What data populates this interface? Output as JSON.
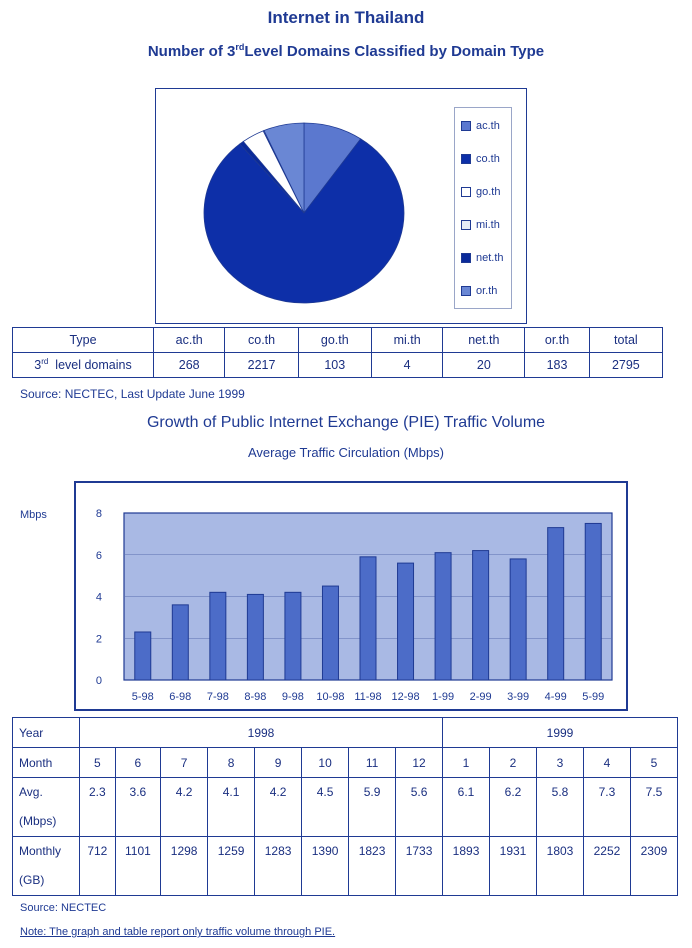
{
  "header": {
    "title": "Internet in Thailand",
    "subtitle_pre": "Number of 3",
    "subtitle_sup": "rd",
    "subtitle_post": "Level Domains Classified by Domain Type"
  },
  "pie": {
    "legend": [
      {
        "label": "ac.th",
        "color": "#5b78cf"
      },
      {
        "label": "co.th",
        "color": "#0d2fa8"
      },
      {
        "label": "go.th",
        "color": "#ffffff"
      },
      {
        "label": "mi.th",
        "color": "#e4ebf7"
      },
      {
        "label": "net.th",
        "color": "#0a2a9a"
      },
      {
        "label": "or.th",
        "color": "#6a87d4"
      }
    ]
  },
  "domain_table": {
    "type_label": "Type",
    "row_label_pre": "3",
    "row_label_sup": "rd",
    "row_label_post": "level domains",
    "columns": [
      "ac.th",
      "co.th",
      "go.th",
      "mi.th",
      "net.th",
      "or.th",
      "total"
    ],
    "values": [
      "268",
      "2217",
      "103",
      "4",
      "20",
      "183",
      "2795"
    ]
  },
  "source1": "Source: NECTEC, Last Update June 1999",
  "traffic": {
    "title": "Growth of Public Internet Exchange (PIE) Traffic Volume",
    "subtitle": "Average Traffic Circulation (Mbps)",
    "ylabel": "Mbps"
  },
  "chart_data": {
    "type": "bar",
    "categories": [
      "5-98",
      "6-98",
      "7-98",
      "8-98",
      "9-98",
      "10-98",
      "11-98",
      "12-98",
      "1-99",
      "2-99",
      "3-99",
      "4-99",
      "5-99"
    ],
    "values": [
      2.3,
      3.6,
      4.2,
      4.1,
      4.2,
      4.5,
      5.9,
      5.6,
      6.1,
      6.2,
      5.8,
      7.3,
      7.5
    ],
    "ylim": [
      0,
      8
    ],
    "yticks": [
      0,
      2,
      4,
      6,
      8
    ],
    "grid": true,
    "bar_color": "#4c6cc8",
    "plot_bg": "#a9b9e4"
  },
  "traffic_table": {
    "year_label": "Year",
    "year1": "1998",
    "year2": "1999",
    "month_label": "Month",
    "months": [
      "5",
      "6",
      "7",
      "8",
      "9",
      "10",
      "11",
      "12",
      "1",
      "2",
      "3",
      "4",
      "5"
    ],
    "avg_label_1": "Avg.",
    "avg_label_2": "(Mbps)",
    "avg": [
      "2.3",
      "3.6",
      "4.2",
      "4.1",
      "4.2",
      "4.5",
      "5.9",
      "5.6",
      "6.1",
      "6.2",
      "5.8",
      "7.3",
      "7.5"
    ],
    "monthly_label_1": "Monthly",
    "monthly_label_2": "(GB)",
    "monthly": [
      "712",
      "1101",
      "1298",
      "1259",
      "1283",
      "1390",
      "1823",
      "1733",
      "1893",
      "1931",
      "1803",
      "2252",
      "2309"
    ]
  },
  "source2": "Source: NECTEC",
  "note": "Note: The graph and table report only traffic volume through PIE."
}
